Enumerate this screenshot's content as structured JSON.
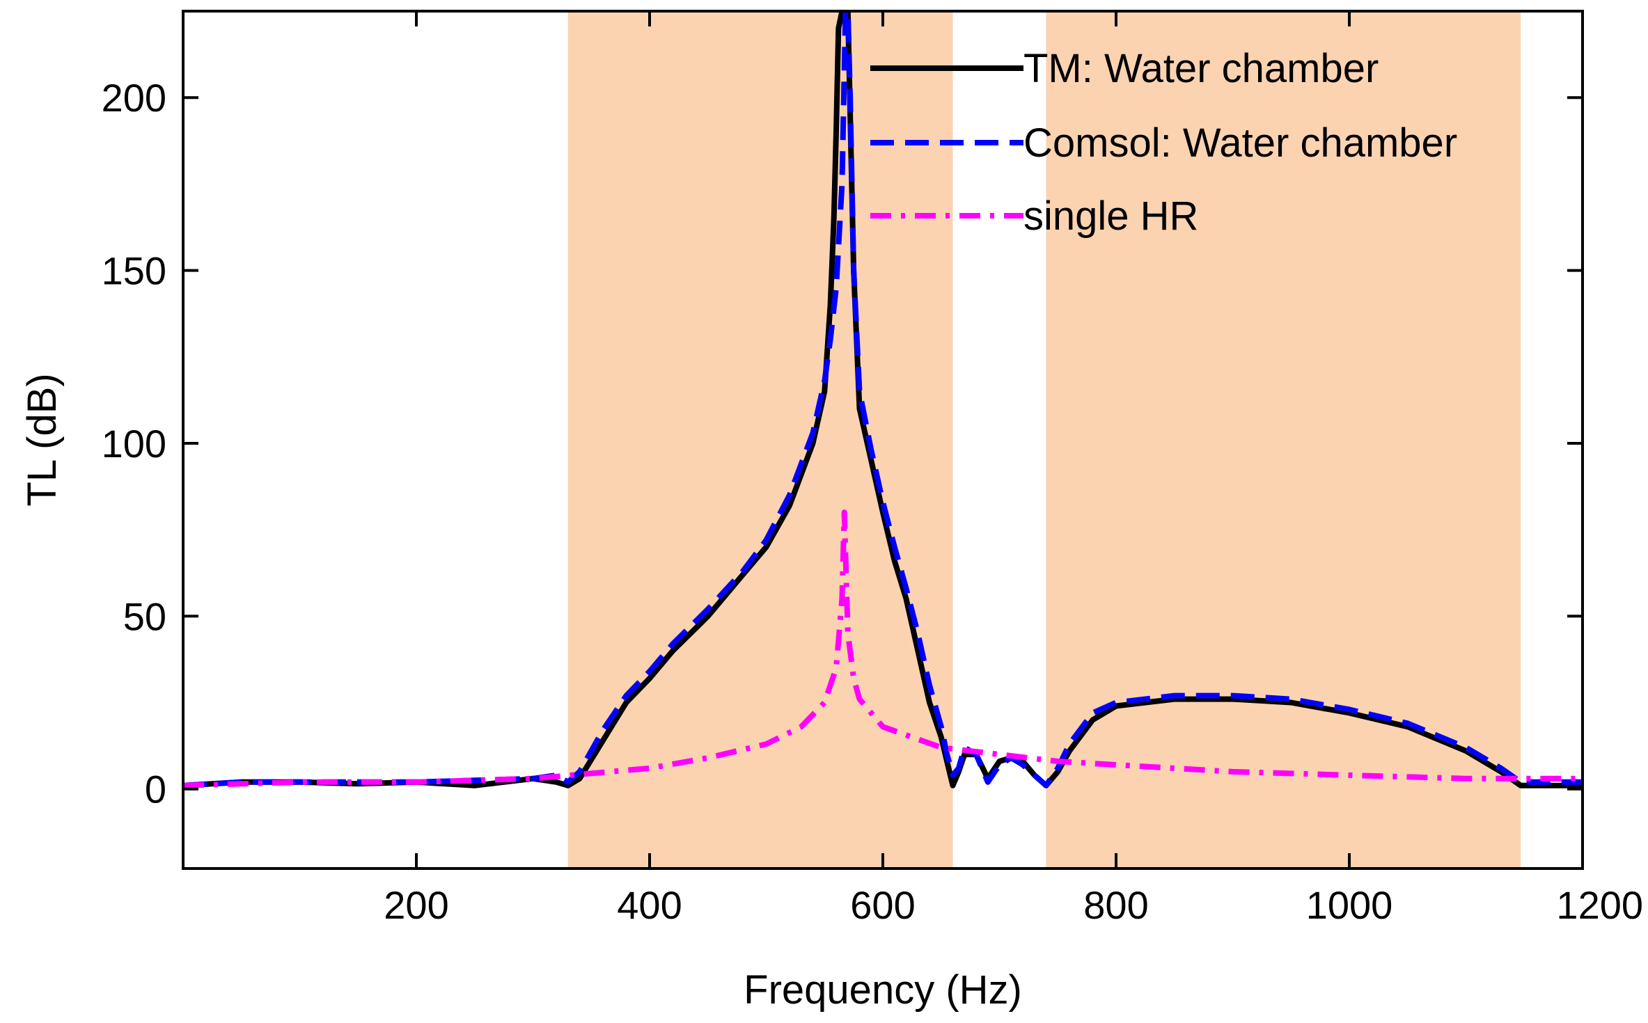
{
  "chart_data": {
    "type": "line",
    "title": "",
    "xlabel": "Frequency (Hz)",
    "ylabel": "TL (dB)",
    "xlim": [
      0,
      1200
    ],
    "ylim": [
      -23,
      225
    ],
    "xticks": [
      200,
      400,
      600,
      800,
      1000,
      1200
    ],
    "yticks": [
      0,
      50,
      100,
      150,
      200
    ],
    "xtick_labels": [
      "200",
      "400",
      "600",
      "800",
      "1000",
      "1200"
    ],
    "ytick_labels": [
      "0",
      "50",
      "100",
      "150",
      "200"
    ],
    "grid": false,
    "legend_position": "top-right",
    "shaded_bands": [
      {
        "x0": 330,
        "x1": 660,
        "color": "#FBD3B1"
      },
      {
        "x0": 740,
        "x1": 1147,
        "color": "#FBD3B1"
      }
    ],
    "series": [
      {
        "name": "TM: Water chamber",
        "color": "#000000",
        "style": "solid",
        "x": [
          0,
          50,
          100,
          150,
          200,
          250,
          300,
          320,
          330,
          340,
          360,
          380,
          400,
          420,
          450,
          480,
          500,
          520,
          540,
          550,
          555,
          558,
          560,
          562,
          565,
          570,
          575,
          580,
          590,
          600,
          610,
          620,
          630,
          640,
          650,
          655,
          660,
          665,
          670,
          680,
          690,
          700,
          710,
          720,
          730,
          740,
          750,
          760,
          780,
          800,
          850,
          900,
          950,
          1000,
          1050,
          1100,
          1130,
          1147,
          1160,
          1200
        ],
        "values": [
          1,
          2,
          2,
          1.5,
          2,
          1,
          3,
          2,
          1,
          3,
          14,
          25,
          32,
          40,
          50,
          62,
          70,
          82,
          100,
          115,
          140,
          165,
          190,
          220,
          225,
          225,
          150,
          110,
          95,
          80,
          66,
          55,
          40,
          25,
          15,
          8,
          1,
          5,
          10,
          10,
          3,
          8,
          9,
          8,
          4,
          1,
          5,
          11,
          20,
          24,
          26,
          26,
          25,
          22,
          18,
          11,
          5,
          1,
          1,
          1
        ]
      },
      {
        "name": "Comsol: Water chamber",
        "color": "#0000FF",
        "style": "dashed",
        "x": [
          0,
          50,
          100,
          150,
          200,
          250,
          300,
          320,
          330,
          340,
          360,
          380,
          400,
          420,
          450,
          480,
          500,
          520,
          540,
          550,
          555,
          560,
          565,
          568,
          570,
          572,
          575,
          580,
          590,
          600,
          610,
          620,
          630,
          640,
          650,
          655,
          660,
          665,
          670,
          680,
          690,
          700,
          710,
          720,
          730,
          740,
          750,
          760,
          780,
          800,
          850,
          900,
          950,
          1000,
          1050,
          1100,
          1130,
          1147,
          1160,
          1200
        ],
        "values": [
          1,
          2,
          2,
          2,
          2,
          2.5,
          3,
          4,
          2,
          5,
          17,
          27,
          34,
          42,
          52,
          63,
          72,
          85,
          103,
          118,
          130,
          145,
          175,
          225,
          225,
          200,
          150,
          115,
          98,
          83,
          70,
          58,
          45,
          30,
          18,
          10,
          4,
          6,
          12,
          10,
          2,
          7,
          9,
          7,
          4,
          1,
          6,
          13,
          22,
          25,
          27,
          27,
          26,
          23,
          19,
          12,
          6,
          2,
          2,
          2
        ]
      },
      {
        "name": "single HR",
        "color": "#FF00FF",
        "style": "dashdot",
        "x": [
          0,
          100,
          200,
          300,
          400,
          450,
          500,
          530,
          550,
          560,
          565,
          567,
          570,
          575,
          580,
          600,
          650,
          700,
          750,
          800,
          900,
          1000,
          1100,
          1200
        ],
        "values": [
          1,
          2,
          2,
          3,
          6,
          9,
          13,
          18,
          25,
          35,
          55,
          80,
          45,
          32,
          26,
          18,
          12,
          10,
          8,
          7,
          5,
          4,
          3,
          3
        ]
      }
    ]
  }
}
